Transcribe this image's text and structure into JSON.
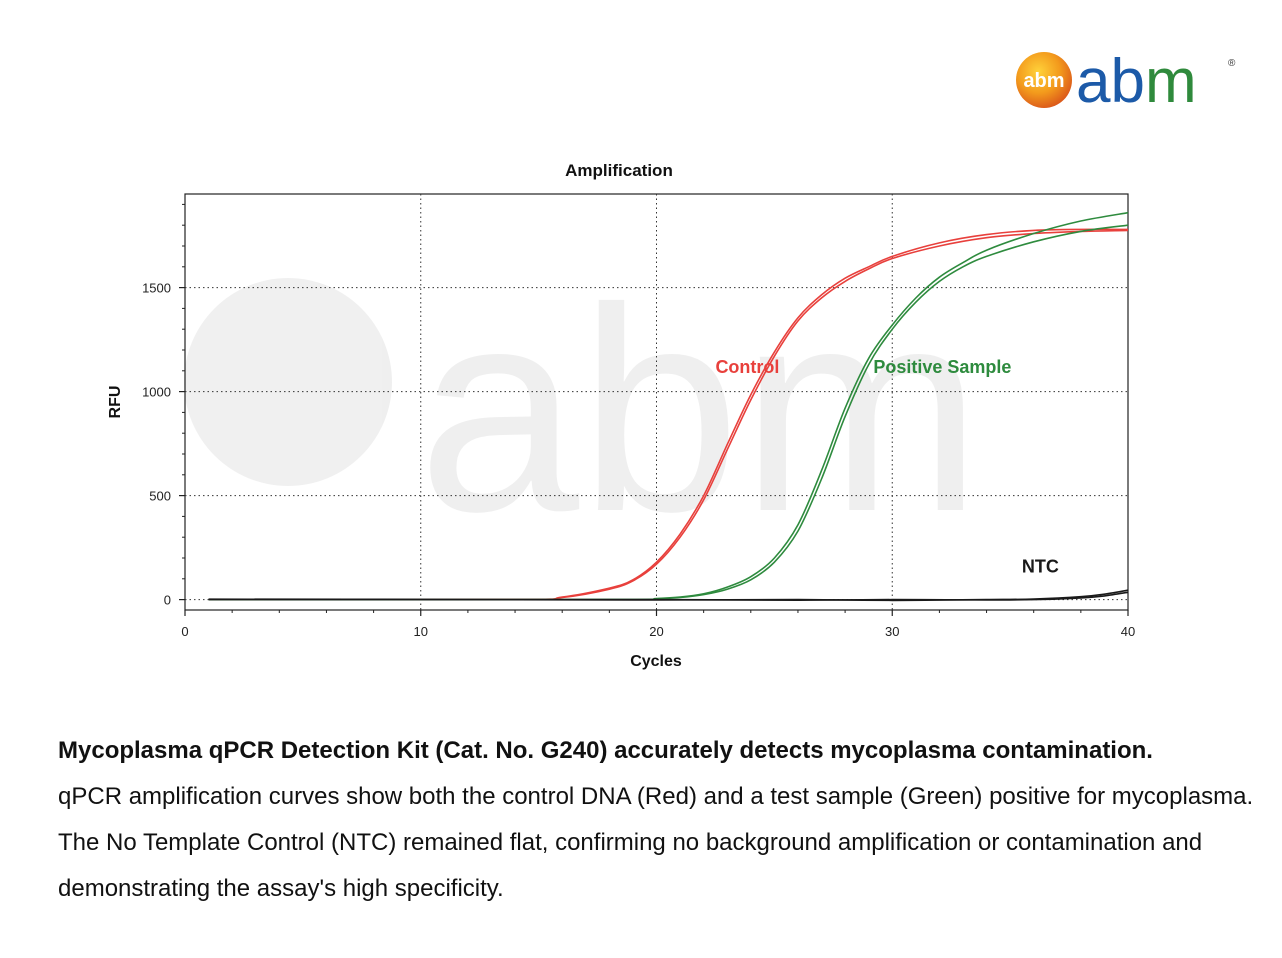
{
  "logo": {
    "badge_text": "abm",
    "wordmark": "abm",
    "registered": "®"
  },
  "colors": {
    "control": "#e8403c",
    "positive": "#2e8b3e",
    "ntc": "#1a1a1a",
    "brand_orange": "#f07b16",
    "brand_blue": "#1c5aa8",
    "brand_green": "#2f8a3c"
  },
  "chart_data": {
    "type": "line",
    "title": "Amplification",
    "xlabel": "Cycles",
    "ylabel": "RFU",
    "xlim": [
      0,
      40
    ],
    "ylim": [
      -50,
      1950
    ],
    "xticks": [
      0,
      10,
      20,
      30,
      40
    ],
    "yticks": [
      0,
      500,
      1000,
      1500
    ],
    "grid": true,
    "annotations": [
      {
        "text": "Control",
        "x": 22.5,
        "y": 1090,
        "color": "#e8403c"
      },
      {
        "text": "Positive Sample",
        "x": 29.2,
        "y": 1090,
        "color": "#2e8b3e"
      },
      {
        "text": "NTC",
        "x": 35.5,
        "y": 130,
        "color": "#1a1a1a"
      }
    ],
    "series": [
      {
        "group": "Control",
        "color": "#e8403c",
        "x": [
          1,
          14,
          16,
          18,
          19,
          20,
          21,
          22,
          23,
          24,
          25,
          26,
          27,
          28,
          29,
          30,
          32,
          34,
          36,
          38,
          40
        ],
        "y": [
          0,
          0,
          10,
          50,
          90,
          170,
          300,
          480,
          720,
          960,
          1170,
          1340,
          1450,
          1530,
          1590,
          1640,
          1700,
          1740,
          1760,
          1770,
          1775
        ]
      },
      {
        "group": "Control",
        "color": "#e8403c",
        "x": [
          1,
          14,
          16,
          18,
          19,
          20,
          21,
          22,
          23,
          24,
          25,
          26,
          27,
          28,
          29,
          30,
          32,
          34,
          36,
          38,
          40
        ],
        "y": [
          0,
          0,
          12,
          55,
          95,
          180,
          315,
          500,
          745,
          985,
          1190,
          1355,
          1465,
          1545,
          1600,
          1650,
          1715,
          1755,
          1775,
          1780,
          1780
        ]
      },
      {
        "group": "Positive Sample",
        "color": "#2e8b3e",
        "x": [
          1,
          18,
          20,
          21,
          22,
          23,
          24,
          25,
          26,
          27,
          28,
          29,
          30,
          31,
          32,
          33,
          34,
          36,
          38,
          40
        ],
        "y": [
          0,
          0,
          5,
          12,
          28,
          60,
          110,
          200,
          360,
          620,
          920,
          1160,
          1320,
          1450,
          1550,
          1620,
          1680,
          1760,
          1820,
          1860
        ]
      },
      {
        "group": "Positive Sample",
        "color": "#2e8b3e",
        "x": [
          1,
          18,
          20,
          21,
          22,
          23,
          24,
          25,
          26,
          27,
          28,
          29,
          30,
          31,
          32,
          33,
          34,
          36,
          38,
          40
        ],
        "y": [
          0,
          0,
          4,
          10,
          24,
          50,
          95,
          180,
          330,
          580,
          880,
          1130,
          1300,
          1430,
          1530,
          1600,
          1650,
          1720,
          1770,
          1800
        ]
      },
      {
        "group": "NTC",
        "color": "#1a1a1a",
        "x": [
          1,
          10,
          20,
          26,
          30,
          34,
          36,
          38,
          39,
          40
        ],
        "y": [
          0,
          0,
          0,
          -3,
          0,
          -2,
          0,
          8,
          18,
          35
        ]
      },
      {
        "group": "NTC",
        "color": "#1a1a1a",
        "x": [
          1,
          10,
          20,
          26,
          30,
          34,
          36,
          38,
          39,
          40
        ],
        "y": [
          2,
          1,
          -2,
          0,
          -4,
          0,
          3,
          14,
          26,
          45
        ]
      }
    ]
  },
  "caption": {
    "bold": "Mycoplasma qPCR Detection Kit (Cat. No. G240) accurately detects mycoplasma contamination.",
    "body": "qPCR amplification curves show both the control DNA (Red) and a test sample (Green) positive for mycoplasma. The No Template Control (NTC) remained flat, confirming no background amplification or contamination and demonstrating the assay's high specificity."
  }
}
